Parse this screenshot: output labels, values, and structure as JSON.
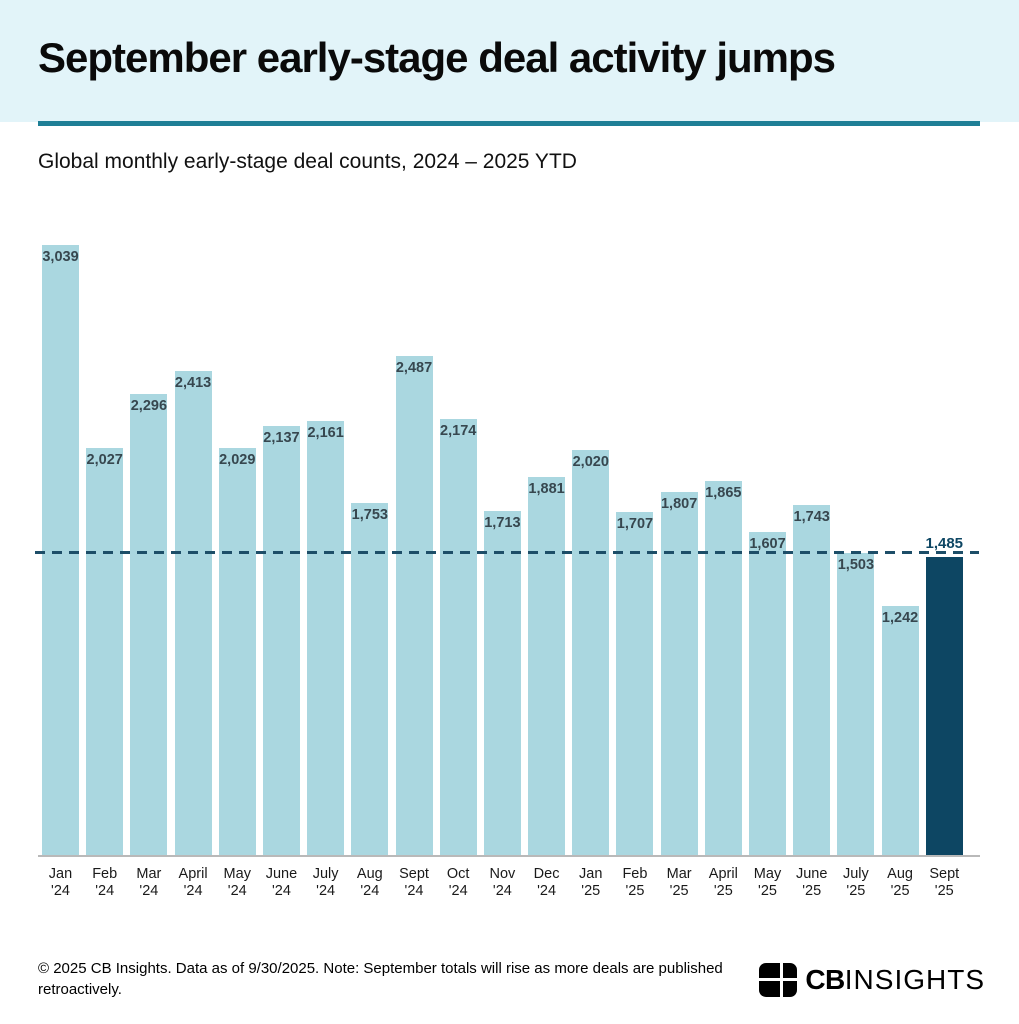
{
  "header": {
    "title": "September early-stage deal activity jumps",
    "subtitle": "Global monthly early-stage deal counts, 2024 – 2025 YTD",
    "band_color": "#e2f4f9",
    "rule_color": "#1e7f96"
  },
  "chart_data": {
    "type": "bar",
    "title": "September early-stage deal activity jumps",
    "subtitle": "Global monthly early-stage deal counts, 2024 – 2025 YTD",
    "categories": [
      "Jan '24",
      "Feb '24",
      "Mar '24",
      "April '24",
      "May '24",
      "June '24",
      "July '24",
      "Aug '24",
      "Sept '24",
      "Oct '24",
      "Nov '24",
      "Dec '24",
      "Jan '25",
      "Feb '25",
      "Mar '25",
      "April '25",
      "May '25",
      "June '25",
      "July '25",
      "Aug '25",
      "Sept '25"
    ],
    "values": [
      3039,
      2027,
      2296,
      2413,
      2029,
      2137,
      2161,
      1753,
      2487,
      2174,
      1713,
      1881,
      2020,
      1707,
      1807,
      1865,
      1607,
      1743,
      1503,
      1242,
      1485
    ],
    "value_labels": [
      "3,039",
      "2,027",
      "2,296",
      "2,413",
      "2,029",
      "2,137",
      "2,161",
      "1,753",
      "2,487",
      "2,174",
      "1,713",
      "1,881",
      "2,020",
      "1,707",
      "1,807",
      "1,865",
      "1,607",
      "1,743",
      "1,503",
      "1,242",
      "1,485"
    ],
    "highlight_index": 20,
    "bar_color": "#aad7e0",
    "highlight_bar_color": "#0d4663",
    "value_label_color": "#37474f",
    "highlight_value_label_color": "#0d4663",
    "reference_line": {
      "value": 1485,
      "style": "dashed",
      "color": "#1d4e68"
    },
    "ylim": [
      0,
      3039
    ],
    "grid": "off",
    "legend": "none",
    "xlabel": "",
    "ylabel": ""
  },
  "footer": {
    "note": "© 2025 CB Insights. Data as of 9/30/2025. Note: September totals will rise as more deals are published retroactively.",
    "logo": {
      "mark_icon": "cb-insights-grid-mark-icon",
      "text_bold": "CB",
      "text_light": "INSIGHTS"
    }
  }
}
